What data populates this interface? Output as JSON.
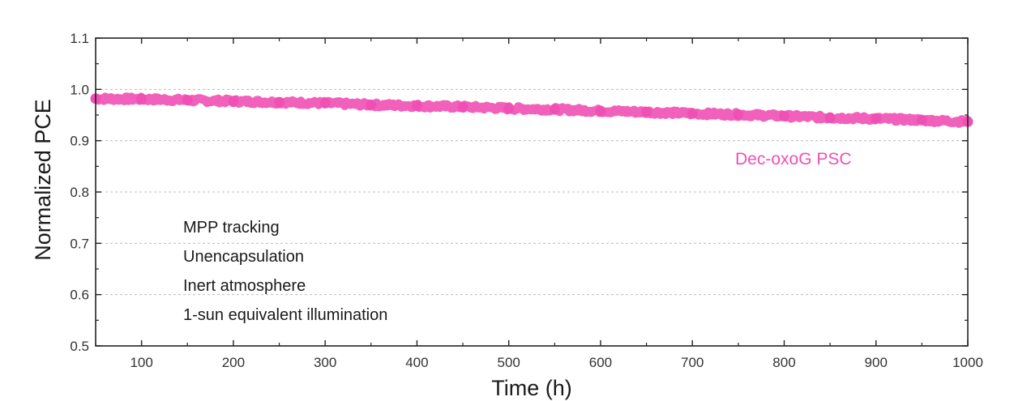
{
  "chart_data": {
    "type": "scatter",
    "xlabel": "Time (h)",
    "ylabel": "Normalized PCE",
    "xlim": [
      50,
      1000
    ],
    "ylim": [
      0.5,
      1.1
    ],
    "x_ticks": [
      100,
      200,
      300,
      400,
      500,
      600,
      700,
      800,
      900,
      1000
    ],
    "y_ticks": [
      "0.5",
      "0.6",
      "0.7",
      "0.8",
      "0.9",
      "1.0",
      "1.1"
    ],
    "grid": "horizontal dashed",
    "series": [
      {
        "name": "Dec-oxoG PSC",
        "color": "#f050b4",
        "x": [
          50,
          100,
          150,
          200,
          250,
          300,
          350,
          400,
          450,
          500,
          550,
          600,
          650,
          700,
          750,
          800,
          850,
          900,
          950,
          1000
        ],
        "y": [
          0.982,
          0.981,
          0.979,
          0.977,
          0.975,
          0.973,
          0.97,
          0.968,
          0.966,
          0.963,
          0.961,
          0.958,
          0.956,
          0.953,
          0.951,
          0.948,
          0.945,
          0.943,
          0.94,
          0.937
        ]
      }
    ],
    "annotations": [
      "MPP tracking",
      "Unencapsulation",
      "Inert atmosphere",
      "1-sun equivalent illumination"
    ]
  }
}
